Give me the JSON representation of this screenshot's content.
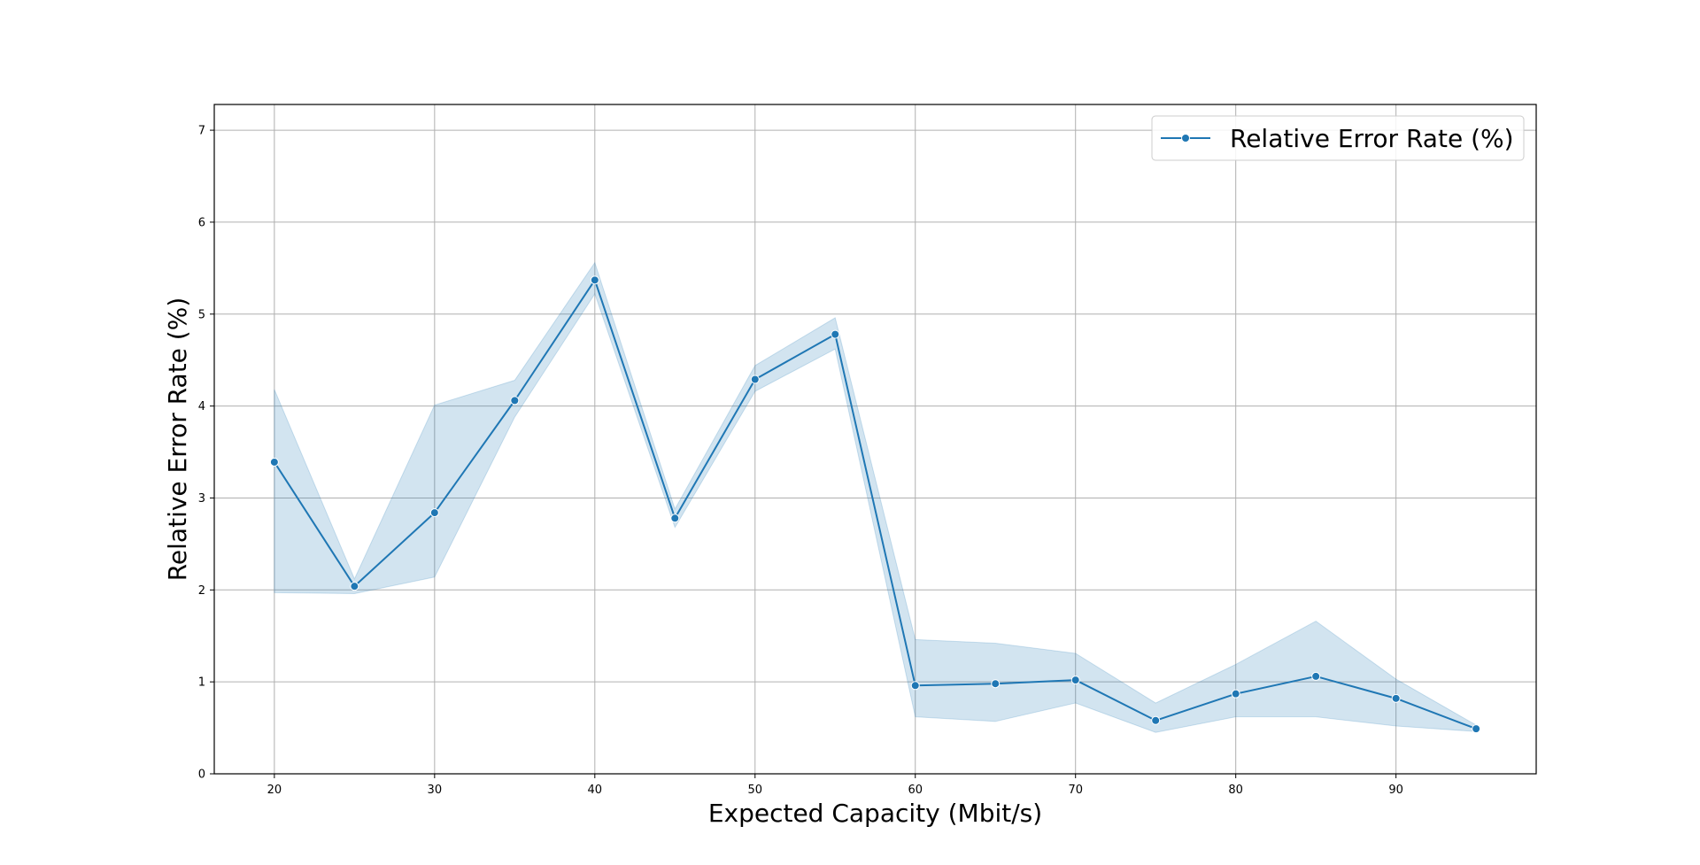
{
  "chart_data": {
    "type": "line",
    "title": "",
    "xlabel": "Expected Capacity (Mbit/s)",
    "ylabel": "Relative Error Rate (%)",
    "xlim": [
      16.25,
      98.75
    ],
    "ylim": [
      0,
      7.28
    ],
    "xticks": [
      20,
      30,
      40,
      50,
      60,
      70,
      80,
      90
    ],
    "yticks": [
      0,
      1,
      2,
      3,
      4,
      5,
      6,
      7
    ],
    "grid": true,
    "legend_position": "top-right",
    "colors": {
      "line": "#1f77b4",
      "band": "#1f77b4",
      "grid": "#b0b0b0"
    },
    "series": [
      {
        "name": "Relative Error Rate (%)",
        "x": [
          20,
          25,
          30,
          35,
          40,
          45,
          50,
          55,
          60,
          65,
          70,
          75,
          80,
          85,
          90,
          95
        ],
        "values": [
          3.39,
          2.04,
          2.84,
          4.06,
          5.37,
          2.78,
          4.29,
          4.78,
          0.96,
          0.98,
          1.02,
          0.58,
          0.87,
          1.06,
          0.82,
          0.49
        ],
        "ci_lower": [
          1.97,
          1.96,
          2.14,
          3.88,
          5.22,
          2.68,
          4.16,
          4.62,
          0.62,
          0.57,
          0.77,
          0.45,
          0.62,
          0.62,
          0.52,
          0.46
        ],
        "ci_upper": [
          4.18,
          2.12,
          4.01,
          4.28,
          5.56,
          2.88,
          4.44,
          4.96,
          1.46,
          1.42,
          1.31,
          0.77,
          1.19,
          1.66,
          1.03,
          0.53
        ]
      }
    ]
  }
}
